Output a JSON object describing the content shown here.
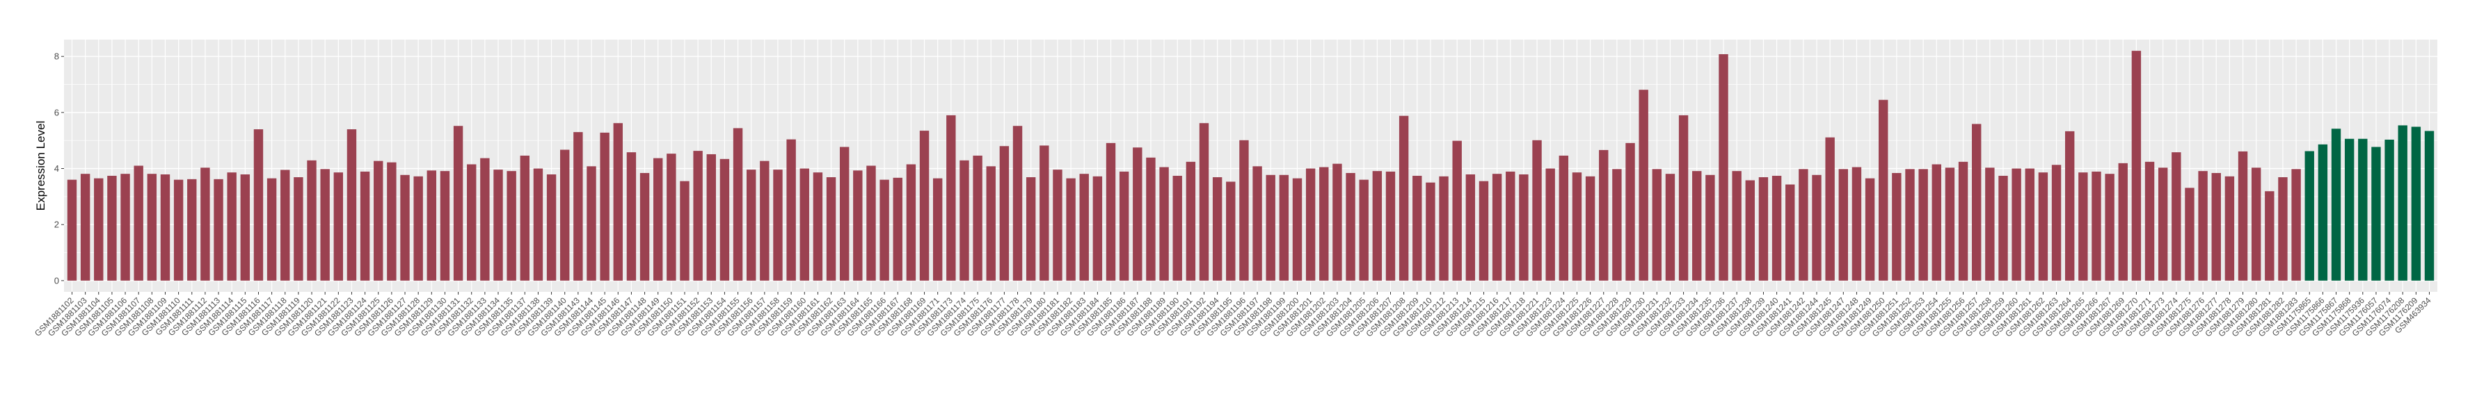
{
  "chart_data": {
    "type": "bar",
    "title": "",
    "xlabel": "",
    "ylabel": "Expression Level",
    "ylim": [
      -0.4,
      8.6
    ],
    "yticks": [
      0,
      2,
      4,
      6,
      8
    ],
    "grid": true,
    "legend": "none",
    "colors": {
      "group_1": "#9b4150",
      "group_2": "#006644",
      "panel_bg": "#ebebeb",
      "grid": "#ffffff"
    },
    "series": [
      {
        "color": "#9b4150",
        "categories": [
          "GSM1881102",
          "GSM1881103",
          "GSM1881104",
          "GSM1881105",
          "GSM1881106",
          "GSM1881107",
          "GSM1881108",
          "GSM1881109",
          "GSM1881110",
          "GSM1881111",
          "GSM1881112",
          "GSM1881113",
          "GSM1881114",
          "GSM1881115",
          "GSM1881116",
          "GSM1881117",
          "GSM1881118",
          "GSM1881119",
          "GSM1881120",
          "GSM1881121",
          "GSM1881122",
          "GSM1881123",
          "GSM1881124",
          "GSM1881125",
          "GSM1881126",
          "GSM1881127",
          "GSM1881128",
          "GSM1881129",
          "GSM1881130",
          "GSM1881131",
          "GSM1881132",
          "GSM1881133",
          "GSM1881134",
          "GSM1881135",
          "GSM1881137",
          "GSM1881138",
          "GSM1881139",
          "GSM1881140",
          "GSM1881143",
          "GSM1881144",
          "GSM1881145",
          "GSM1881146",
          "GSM1881147",
          "GSM1881148",
          "GSM1881149",
          "GSM1881150",
          "GSM1881151",
          "GSM1881152",
          "GSM1881153",
          "GSM1881154",
          "GSM1881155",
          "GSM1881156",
          "GSM1881157",
          "GSM1881158",
          "GSM1881159",
          "GSM1881160",
          "GSM1881161",
          "GSM1881162",
          "GSM1881163",
          "GSM1881164",
          "GSM1881165",
          "GSM1881166",
          "GSM1881167",
          "GSM1881168",
          "GSM1881169",
          "GSM1881171",
          "GSM1881173",
          "GSM1881174",
          "GSM1881175",
          "GSM1881176",
          "GSM1881177",
          "GSM1881178",
          "GSM1881179",
          "GSM1881180",
          "GSM1881181",
          "GSM1881182",
          "GSM1881183",
          "GSM1881184",
          "GSM1881185",
          "GSM1881186",
          "GSM1881187",
          "GSM1881188",
          "GSM1881189",
          "GSM1881190",
          "GSM1881191",
          "GSM1881192",
          "GSM1881194",
          "GSM1881195",
          "GSM1881196",
          "GSM1881197",
          "GSM1881198",
          "GSM1881199",
          "GSM1881200",
          "GSM1881201",
          "GSM1881202",
          "GSM1881203",
          "GSM1881204",
          "GSM1881205",
          "GSM1881206",
          "GSM1881207",
          "GSM1881208",
          "GSM1881209",
          "GSM1881210",
          "GSM1881212",
          "GSM1881213",
          "GSM1881214",
          "GSM1881215",
          "GSM1881216",
          "GSM1881217",
          "GSM1881218",
          "GSM1881221",
          "GSM1881223",
          "GSM1881224",
          "GSM1881225",
          "GSM1881226",
          "GSM1881227",
          "GSM1881228",
          "GSM1881229",
          "GSM1881230",
          "GSM1881231",
          "GSM1881232",
          "GSM1881233",
          "GSM1881234",
          "GSM1881235",
          "GSM1881236",
          "GSM1881237",
          "GSM1881238",
          "GSM1881239",
          "GSM1881240",
          "GSM1881241",
          "GSM1881242",
          "GSM1881244",
          "GSM1881245",
          "GSM1881247",
          "GSM1881248",
          "GSM1881249",
          "GSM1881250",
          "GSM1881251",
          "GSM1881252",
          "GSM1881253",
          "GSM1881254",
          "GSM1881255",
          "GSM1881256",
          "GSM1881257",
          "GSM1881258",
          "GSM1881259",
          "GSM1881260",
          "GSM1881261",
          "GSM1881262",
          "GSM1881263",
          "GSM1881264",
          "GSM1881265",
          "GSM1881266",
          "GSM1881267",
          "GSM1881269",
          "GSM1881270",
          "GSM1881271",
          "GSM1881273",
          "GSM1881274",
          "GSM1881275",
          "GSM1881276",
          "GSM1881277",
          "GSM1881278",
          "GSM1881279",
          "GSM1881280",
          "GSM1881281",
          "GSM1881282",
          "GSM1881283"
        ],
        "values": [
          3.6,
          3.81,
          3.65,
          3.74,
          3.81,
          4.1,
          3.81,
          3.79,
          3.6,
          3.62,
          4.03,
          3.62,
          3.86,
          3.79,
          5.4,
          3.65,
          3.95,
          3.69,
          4.29,
          3.98,
          3.86,
          5.4,
          3.89,
          4.27,
          4.22,
          3.77,
          3.72,
          3.93,
          3.91,
          5.52,
          4.15,
          4.37,
          3.96,
          3.91,
          4.46,
          4.0,
          3.79,
          4.67,
          5.3,
          4.08,
          5.28,
          5.62,
          4.58,
          3.84,
          4.37,
          4.53,
          3.55,
          4.63,
          4.51,
          4.34,
          5.44,
          3.96,
          4.27,
          3.96,
          5.04,
          4.0,
          3.86,
          3.69,
          4.77,
          3.93,
          4.1,
          3.6,
          3.67,
          4.15,
          5.35,
          3.65,
          5.9,
          4.29,
          4.46,
          4.08,
          4.8,
          5.52,
          3.69,
          4.82,
          3.96,
          3.65,
          3.81,
          3.72,
          4.91,
          3.89,
          4.75,
          4.39,
          4.05,
          3.74,
          4.24,
          5.62,
          3.69,
          3.53,
          5.01,
          4.08,
          3.77,
          3.77,
          3.65,
          4.0,
          4.05,
          4.17,
          3.84,
          3.6,
          3.91,
          3.89,
          5.88,
          3.74,
          3.5,
          3.72,
          4.99,
          3.79,
          3.55,
          3.81,
          3.89,
          3.79,
          5.01,
          4.0,
          4.46,
          3.86,
          3.72,
          4.66,
          3.98,
          4.91,
          6.81,
          3.98,
          3.81,
          5.9,
          3.91,
          3.77,
          8.08,
          3.91,
          3.58,
          3.69,
          3.74,
          3.43,
          3.98,
          3.77,
          5.11,
          3.98,
          4.05,
          3.65,
          6.45,
          3.84,
          3.98,
          3.98,
          4.15,
          4.03,
          4.24,
          5.59,
          4.03,
          3.74,
          4.0,
          4.0,
          3.86,
          4.13,
          5.33,
          3.86,
          3.89,
          3.81,
          4.19,
          8.2,
          4.24,
          4.03,
          4.58,
          3.31,
          3.91,
          3.84,
          3.72,
          4.61,
          4.03,
          3.19,
          3.69,
          3.98
        ]
      },
      {
        "color": "#006644",
        "categories": [
          "GSM1175865",
          "GSM1175866",
          "GSM1175867",
          "GSM1175868",
          "GSM1175936",
          "GSM1176057",
          "GSM1176074",
          "GSM1176208",
          "GSM1176209",
          "GSM463934"
        ],
        "values": [
          4.62,
          4.86,
          5.42,
          5.06,
          5.06,
          4.77,
          5.03,
          5.54,
          5.49,
          5.34
        ]
      }
    ]
  }
}
